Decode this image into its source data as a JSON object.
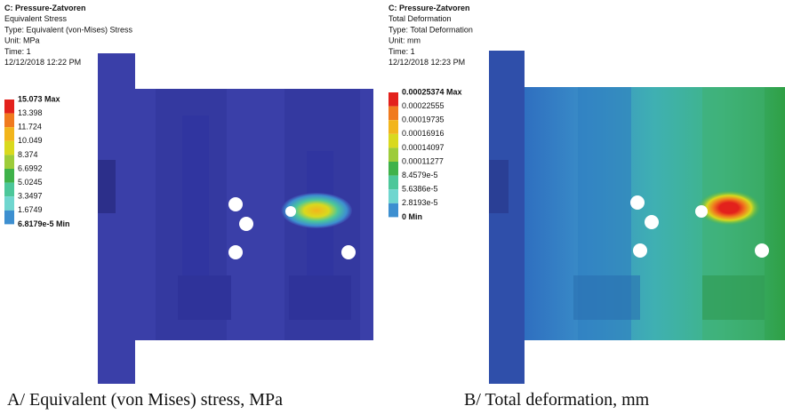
{
  "panels": [
    {
      "header": {
        "lines": [
          "C: Pressure-Zatvoren",
          "Equivalent Stress",
          "Type: Equivalent (von-Mises) Stress",
          "Unit: MPa",
          "Time: 1",
          "12/12/2018 12:22 PM"
        ]
      },
      "legend": {
        "labels": [
          "15.073 Max",
          "13.398",
          "11.724",
          "10.049",
          "8.374",
          "6.6992",
          "5.0245",
          "3.3497",
          "1.6749",
          "6.8179e-5 Min"
        ],
        "colors": [
          "#e3211c",
          "#f07a1e",
          "#f2b51c",
          "#d9d91e",
          "#9dcc3a",
          "#3fb24a",
          "#4cc79a",
          "#6fd6cf",
          "#3d8fd0",
          "#2a2f9e"
        ]
      },
      "caption": "A/ Equivalent (von Mises) stress, MPa"
    },
    {
      "header": {
        "lines": [
          "C: Pressure-Zatvoren",
          "Total Deformation",
          "Type: Total Deformation",
          "Unit: mm",
          "Time: 1",
          "12/12/2018 12:23 PM"
        ]
      },
      "legend": {
        "labels": [
          "0.00025374 Max",
          "0.00022555",
          "0.00019735",
          "0.00016916",
          "0.00014097",
          "0.00011277",
          "8.4579e-5",
          "5.6386e-5",
          "2.8193e-5",
          "0 Min"
        ],
        "colors": [
          "#e3211c",
          "#f07a1e",
          "#f2b51c",
          "#d9d91e",
          "#9dcc3a",
          "#3fb24a",
          "#4cc79a",
          "#6fd6cf",
          "#3d8fd0",
          "#2a2f9e"
        ]
      },
      "caption": "B/ Total deformation, mm"
    }
  ]
}
